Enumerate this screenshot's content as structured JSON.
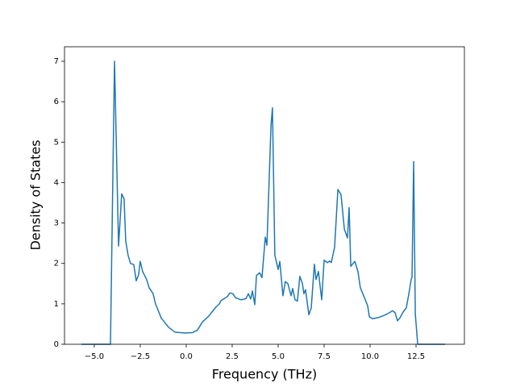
{
  "chart_data": {
    "type": "line",
    "x_label": "Frequency (THz)",
    "y_label": "Density of States",
    "color": "#1f77b4",
    "grid": false,
    "xlim": [
      -6.62,
      15.13
    ],
    "ylim": [
      0,
      7.36
    ],
    "xticks": [
      {
        "value": -5,
        "label": "−5.0"
      },
      {
        "value": -2.5,
        "label": "−2.5"
      },
      {
        "value": 0,
        "label": "0.0"
      },
      {
        "value": 2.5,
        "label": "2.5"
      },
      {
        "value": 5,
        "label": "5.0"
      },
      {
        "value": 7.5,
        "label": "7.5"
      },
      {
        "value": 10,
        "label": "10.0"
      },
      {
        "value": 12.5,
        "label": "12.5"
      }
    ],
    "yticks": [
      0,
      1,
      2,
      3,
      4,
      5,
      6,
      7
    ],
    "x": [
      -5.7,
      -4.12,
      -3.9,
      -3.68,
      -3.51,
      -3.38,
      -3.29,
      -3.16,
      -3.03,
      -2.85,
      -2.72,
      -2.59,
      -2.5,
      -2.37,
      -2.15,
      -2.02,
      -1.8,
      -1.67,
      -1.36,
      -0.96,
      -0.61,
      -0.09,
      0.35,
      0.61,
      0.88,
      1.23,
      1.58,
      1.8,
      1.89,
      2.24,
      2.37,
      2.54,
      2.68,
      2.98,
      3.25,
      3.38,
      3.51,
      3.6,
      3.73,
      3.82,
      3.99,
      4.12,
      4.3,
      4.39,
      4.61,
      4.69,
      4.82,
      5.0,
      5.09,
      5.26,
      5.39,
      5.53,
      5.7,
      5.79,
      5.92,
      6.05,
      6.18,
      6.32,
      6.4,
      6.49,
      6.67,
      6.8,
      6.97,
      7.06,
      7.19,
      7.37,
      7.5,
      7.68,
      7.81,
      7.89,
      8.07,
      8.25,
      8.42,
      8.6,
      8.77,
      8.86,
      8.95,
      9.17,
      9.34,
      9.47,
      9.65,
      9.87,
      9.96,
      10.13,
      10.44,
      10.79,
      11.05,
      11.23,
      11.36,
      11.49,
      11.62,
      11.8,
      11.97,
      12.11,
      12.24,
      12.28,
      12.37,
      12.46,
      12.59,
      14.08
    ],
    "values": [
      0,
      0,
      7.0,
      2.43,
      3.72,
      3.6,
      2.55,
      2.2,
      2.0,
      1.97,
      1.57,
      1.72,
      2.05,
      1.8,
      1.6,
      1.4,
      1.25,
      1.0,
      0.65,
      0.42,
      0.3,
      0.28,
      0.29,
      0.35,
      0.55,
      0.7,
      0.9,
      1.0,
      1.08,
      1.18,
      1.27,
      1.25,
      1.15,
      1.1,
      1.13,
      1.25,
      1.12,
      1.32,
      0.98,
      1.7,
      1.77,
      1.65,
      2.65,
      2.45,
      5.4,
      5.85,
      2.2,
      1.85,
      2.05,
      1.2,
      1.55,
      1.5,
      1.2,
      1.38,
      1.1,
      1.07,
      1.68,
      1.5,
      1.25,
      1.35,
      0.73,
      0.9,
      1.98,
      1.6,
      1.8,
      1.1,
      2.08,
      2.02,
      2.06,
      2.02,
      2.4,
      3.83,
      3.7,
      2.85,
      2.63,
      3.38,
      1.93,
      2.05,
      1.8,
      1.4,
      1.2,
      0.95,
      0.68,
      0.63,
      0.66,
      0.72,
      0.78,
      0.83,
      0.78,
      0.58,
      0.65,
      0.8,
      0.9,
      1.25,
      1.62,
      1.65,
      4.52,
      0.75,
      0,
      0
    ]
  }
}
